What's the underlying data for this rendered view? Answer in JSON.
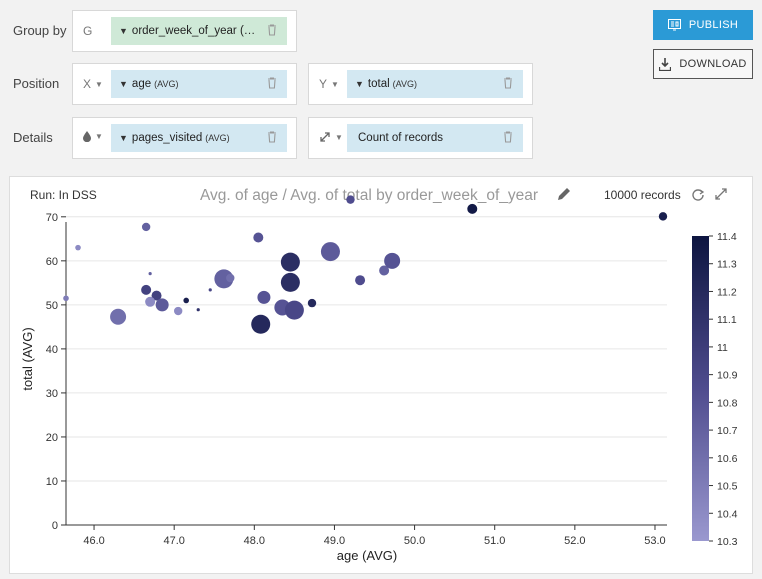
{
  "rows": {
    "group_by": {
      "label": "Group by",
      "letter": "G",
      "pill": "order_week_of_year (…"
    },
    "position": {
      "label": "Position",
      "x_letter": "X",
      "x_pill": "age",
      "x_agg": "(AVG)",
      "y_letter": "Y",
      "y_pill": "total",
      "y_agg": "(AVG)"
    },
    "details": {
      "label": "Details",
      "color_icon": "drop-icon",
      "color_pill": "pages_visited",
      "color_agg": "(AVG)",
      "size_icon": "resize-icon",
      "size_pill": "Count of records"
    }
  },
  "buttons": {
    "publish": "PUBLISH",
    "download": "DOWNLOAD"
  },
  "chart_panel": {
    "run_label": "Run: In DSS",
    "title": "Avg. of age / Avg. of total by order_week_of_year",
    "records": "10000 records"
  },
  "colors": {
    "publish_bg": "#2b9ad6",
    "group_pill": "#cfe9d7",
    "field_pill": "#d3e8f2",
    "scale_low": "#9a98cf",
    "scale_high": "#0d1540"
  },
  "chart_data": {
    "type": "scatter",
    "xlabel": "age (AVG)",
    "ylabel": "total (AVG)",
    "xlim": [
      45.65,
      53.15
    ],
    "ylim": [
      0,
      72
    ],
    "x_ticks": [
      46.0,
      47.0,
      48.0,
      49.0,
      50.0,
      51.0,
      52.0,
      53.0
    ],
    "y_ticks": [
      0,
      10,
      20,
      30,
      40,
      50,
      60,
      70
    ],
    "color_scale": {
      "field": "pages_visited (AVG)",
      "min": 10.3,
      "max": 11.4,
      "ticks": [
        10.3,
        10.4,
        10.5,
        10.6,
        10.7,
        10.8,
        10.9,
        11,
        11.1,
        11.2,
        11.3,
        11.4
      ]
    },
    "points": [
      {
        "x": 45.65,
        "y": 51.5,
        "c": 10.5,
        "s": 1
      },
      {
        "x": 45.8,
        "y": 63.0,
        "c": 10.4,
        "s": 1
      },
      {
        "x": 46.3,
        "y": 47.3,
        "c": 10.6,
        "s": 5
      },
      {
        "x": 46.78,
        "y": 52.1,
        "c": 10.95,
        "s": 3
      },
      {
        "x": 46.65,
        "y": 53.4,
        "c": 10.95,
        "s": 3
      },
      {
        "x": 46.65,
        "y": 67.7,
        "c": 10.7,
        "s": 2
      },
      {
        "x": 46.7,
        "y": 57.1,
        "c": 10.7,
        "s": 0
      },
      {
        "x": 46.7,
        "y": 50.7,
        "c": 10.4,
        "s": 3
      },
      {
        "x": 46.85,
        "y": 50.0,
        "c": 10.75,
        "s": 4
      },
      {
        "x": 47.05,
        "y": 48.6,
        "c": 10.4,
        "s": 2
      },
      {
        "x": 47.15,
        "y": 51.0,
        "c": 11.3,
        "s": 1
      },
      {
        "x": 47.3,
        "y": 48.9,
        "c": 11.1,
        "s": 0
      },
      {
        "x": 47.45,
        "y": 53.4,
        "c": 10.9,
        "s": 0
      },
      {
        "x": 47.62,
        "y": 55.9,
        "c": 10.7,
        "s": 6
      },
      {
        "x": 47.7,
        "y": 56.1,
        "c": 10.6,
        "s": 2
      },
      {
        "x": 48.05,
        "y": 65.3,
        "c": 10.8,
        "s": 3
      },
      {
        "x": 48.08,
        "y": 45.6,
        "c": 11.2,
        "s": 6
      },
      {
        "x": 48.12,
        "y": 51.7,
        "c": 10.8,
        "s": 4
      },
      {
        "x": 48.35,
        "y": 49.4,
        "c": 10.8,
        "s": 5
      },
      {
        "x": 48.45,
        "y": 59.7,
        "c": 11.15,
        "s": 6
      },
      {
        "x": 48.45,
        "y": 55.1,
        "c": 11.15,
        "s": 6
      },
      {
        "x": 48.5,
        "y": 48.8,
        "c": 10.9,
        "s": 6
      },
      {
        "x": 48.72,
        "y": 50.4,
        "c": 11.2,
        "s": 2
      },
      {
        "x": 48.95,
        "y": 62.1,
        "c": 10.75,
        "s": 6
      },
      {
        "x": 49.2,
        "y": 73.9,
        "c": 10.85,
        "s": 2
      },
      {
        "x": 49.32,
        "y": 55.6,
        "c": 10.85,
        "s": 3
      },
      {
        "x": 49.62,
        "y": 57.8,
        "c": 10.7,
        "s": 3
      },
      {
        "x": 49.72,
        "y": 60.0,
        "c": 10.8,
        "s": 5
      },
      {
        "x": 50.72,
        "y": 71.8,
        "c": 11.35,
        "s": 3
      },
      {
        "x": 53.1,
        "y": 70.1,
        "c": 11.3,
        "s": 2
      }
    ]
  }
}
